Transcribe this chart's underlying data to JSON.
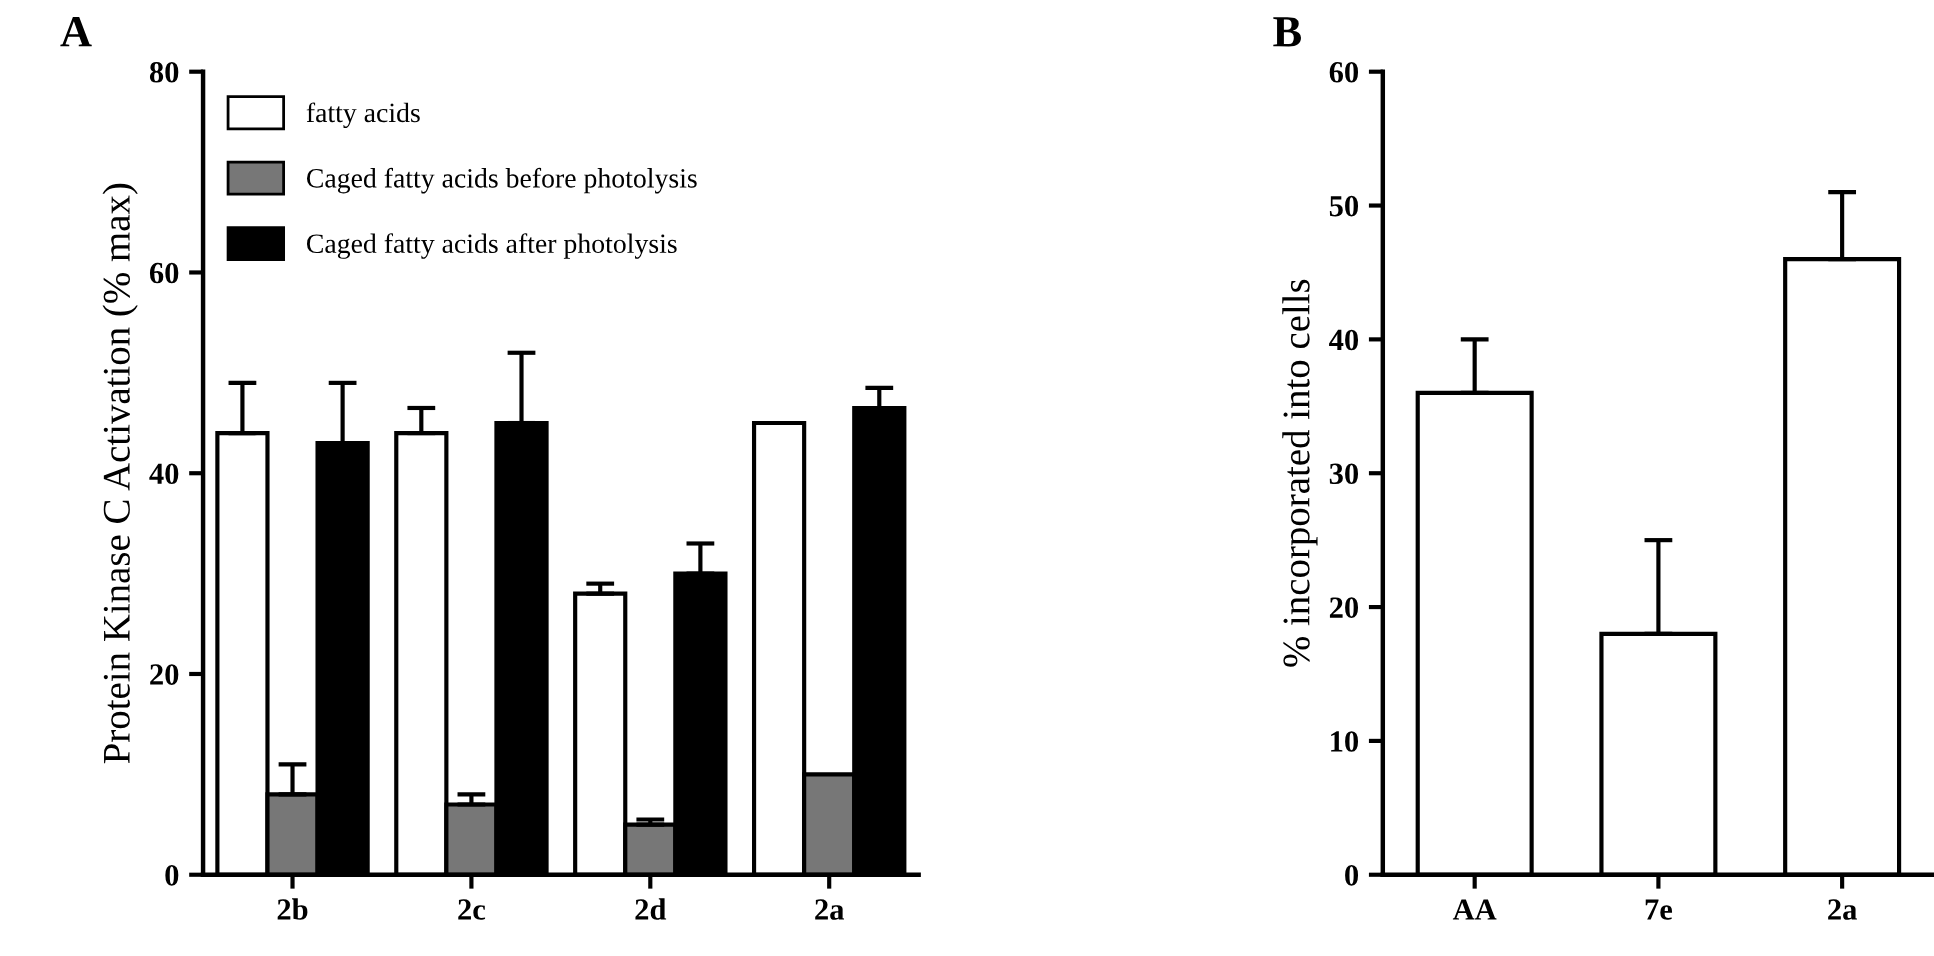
{
  "chart_data": [
    {
      "type": "bar",
      "title": "A",
      "ylabel": "Protein Kinase C Activation (% max)",
      "categories": [
        "2b",
        "2c",
        "2d",
        "2a"
      ],
      "ylim": [
        0,
        80
      ],
      "yticks": [
        0,
        20,
        40,
        60,
        80
      ],
      "grid": false,
      "legend": "top left",
      "series": [
        {
          "name": "fatty acids",
          "color": "#ffffff",
          "values": [
            44,
            44,
            28,
            45
          ],
          "errors": [
            [
              44,
              49
            ],
            [
              44,
              46.5
            ],
            [
              28,
              29
            ],
            null
          ]
        },
        {
          "name": "Caged fatty acids before photolysis",
          "color": "#777777",
          "values": [
            8,
            7,
            5,
            10
          ],
          "errors": [
            [
              8,
              11
            ],
            [
              7,
              8
            ],
            [
              5,
              5.5
            ],
            null
          ]
        },
        {
          "name": "Caged fatty acids after photolysis",
          "color": "#000000",
          "values": [
            43,
            45,
            30,
            46.5
          ],
          "errors": [
            [
              43,
              49
            ],
            [
              45,
              52
            ],
            [
              30,
              33
            ],
            [
              46.5,
              48.5
            ]
          ]
        }
      ]
    },
    {
      "type": "bar",
      "title": "B",
      "ylabel": "% incorporated into cells",
      "categories": [
        "AA",
        "7e",
        "2a"
      ],
      "ylim": [
        0,
        60
      ],
      "yticks": [
        0,
        10,
        20,
        30,
        40,
        50,
        60
      ],
      "grid": false,
      "series": [
        {
          "color": "#ffffff",
          "values": [
            36,
            18,
            46
          ],
          "errors": [
            [
              36,
              40
            ],
            [
              18,
              25
            ],
            [
              46,
              51
            ]
          ]
        }
      ]
    }
  ]
}
